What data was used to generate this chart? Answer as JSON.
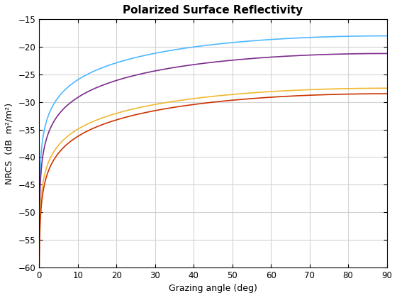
{
  "title": "Polarized Surface Reflectivity",
  "xlabel": "Grazing angle (deg)",
  "ylabel": "NRCS  (dB  m²/m²)",
  "xlim": [
    0,
    90
  ],
  "ylim": [
    -60,
    -15
  ],
  "xticks": [
    0,
    10,
    20,
    30,
    40,
    50,
    60,
    70,
    80,
    90
  ],
  "yticks": [
    -60,
    -55,
    -50,
    -45,
    -40,
    -35,
    -30,
    -25,
    -20,
    -15
  ],
  "line_params": [
    {
      "color": "#4db8ff",
      "A": -18.0,
      "B": 10.5
    },
    {
      "color": "#7b2d8b",
      "A": -21.2,
      "B": 10.5
    },
    {
      "color": "#f0b830",
      "A": -27.5,
      "B": 9.8
    },
    {
      "color": "#cc3300",
      "A": -28.5,
      "B": 10.2
    }
  ],
  "grid_color": "#d3d3d3",
  "bg_color": "#ffffff",
  "title_fontsize": 11,
  "label_fontsize": 9,
  "linewidth": 1.2
}
